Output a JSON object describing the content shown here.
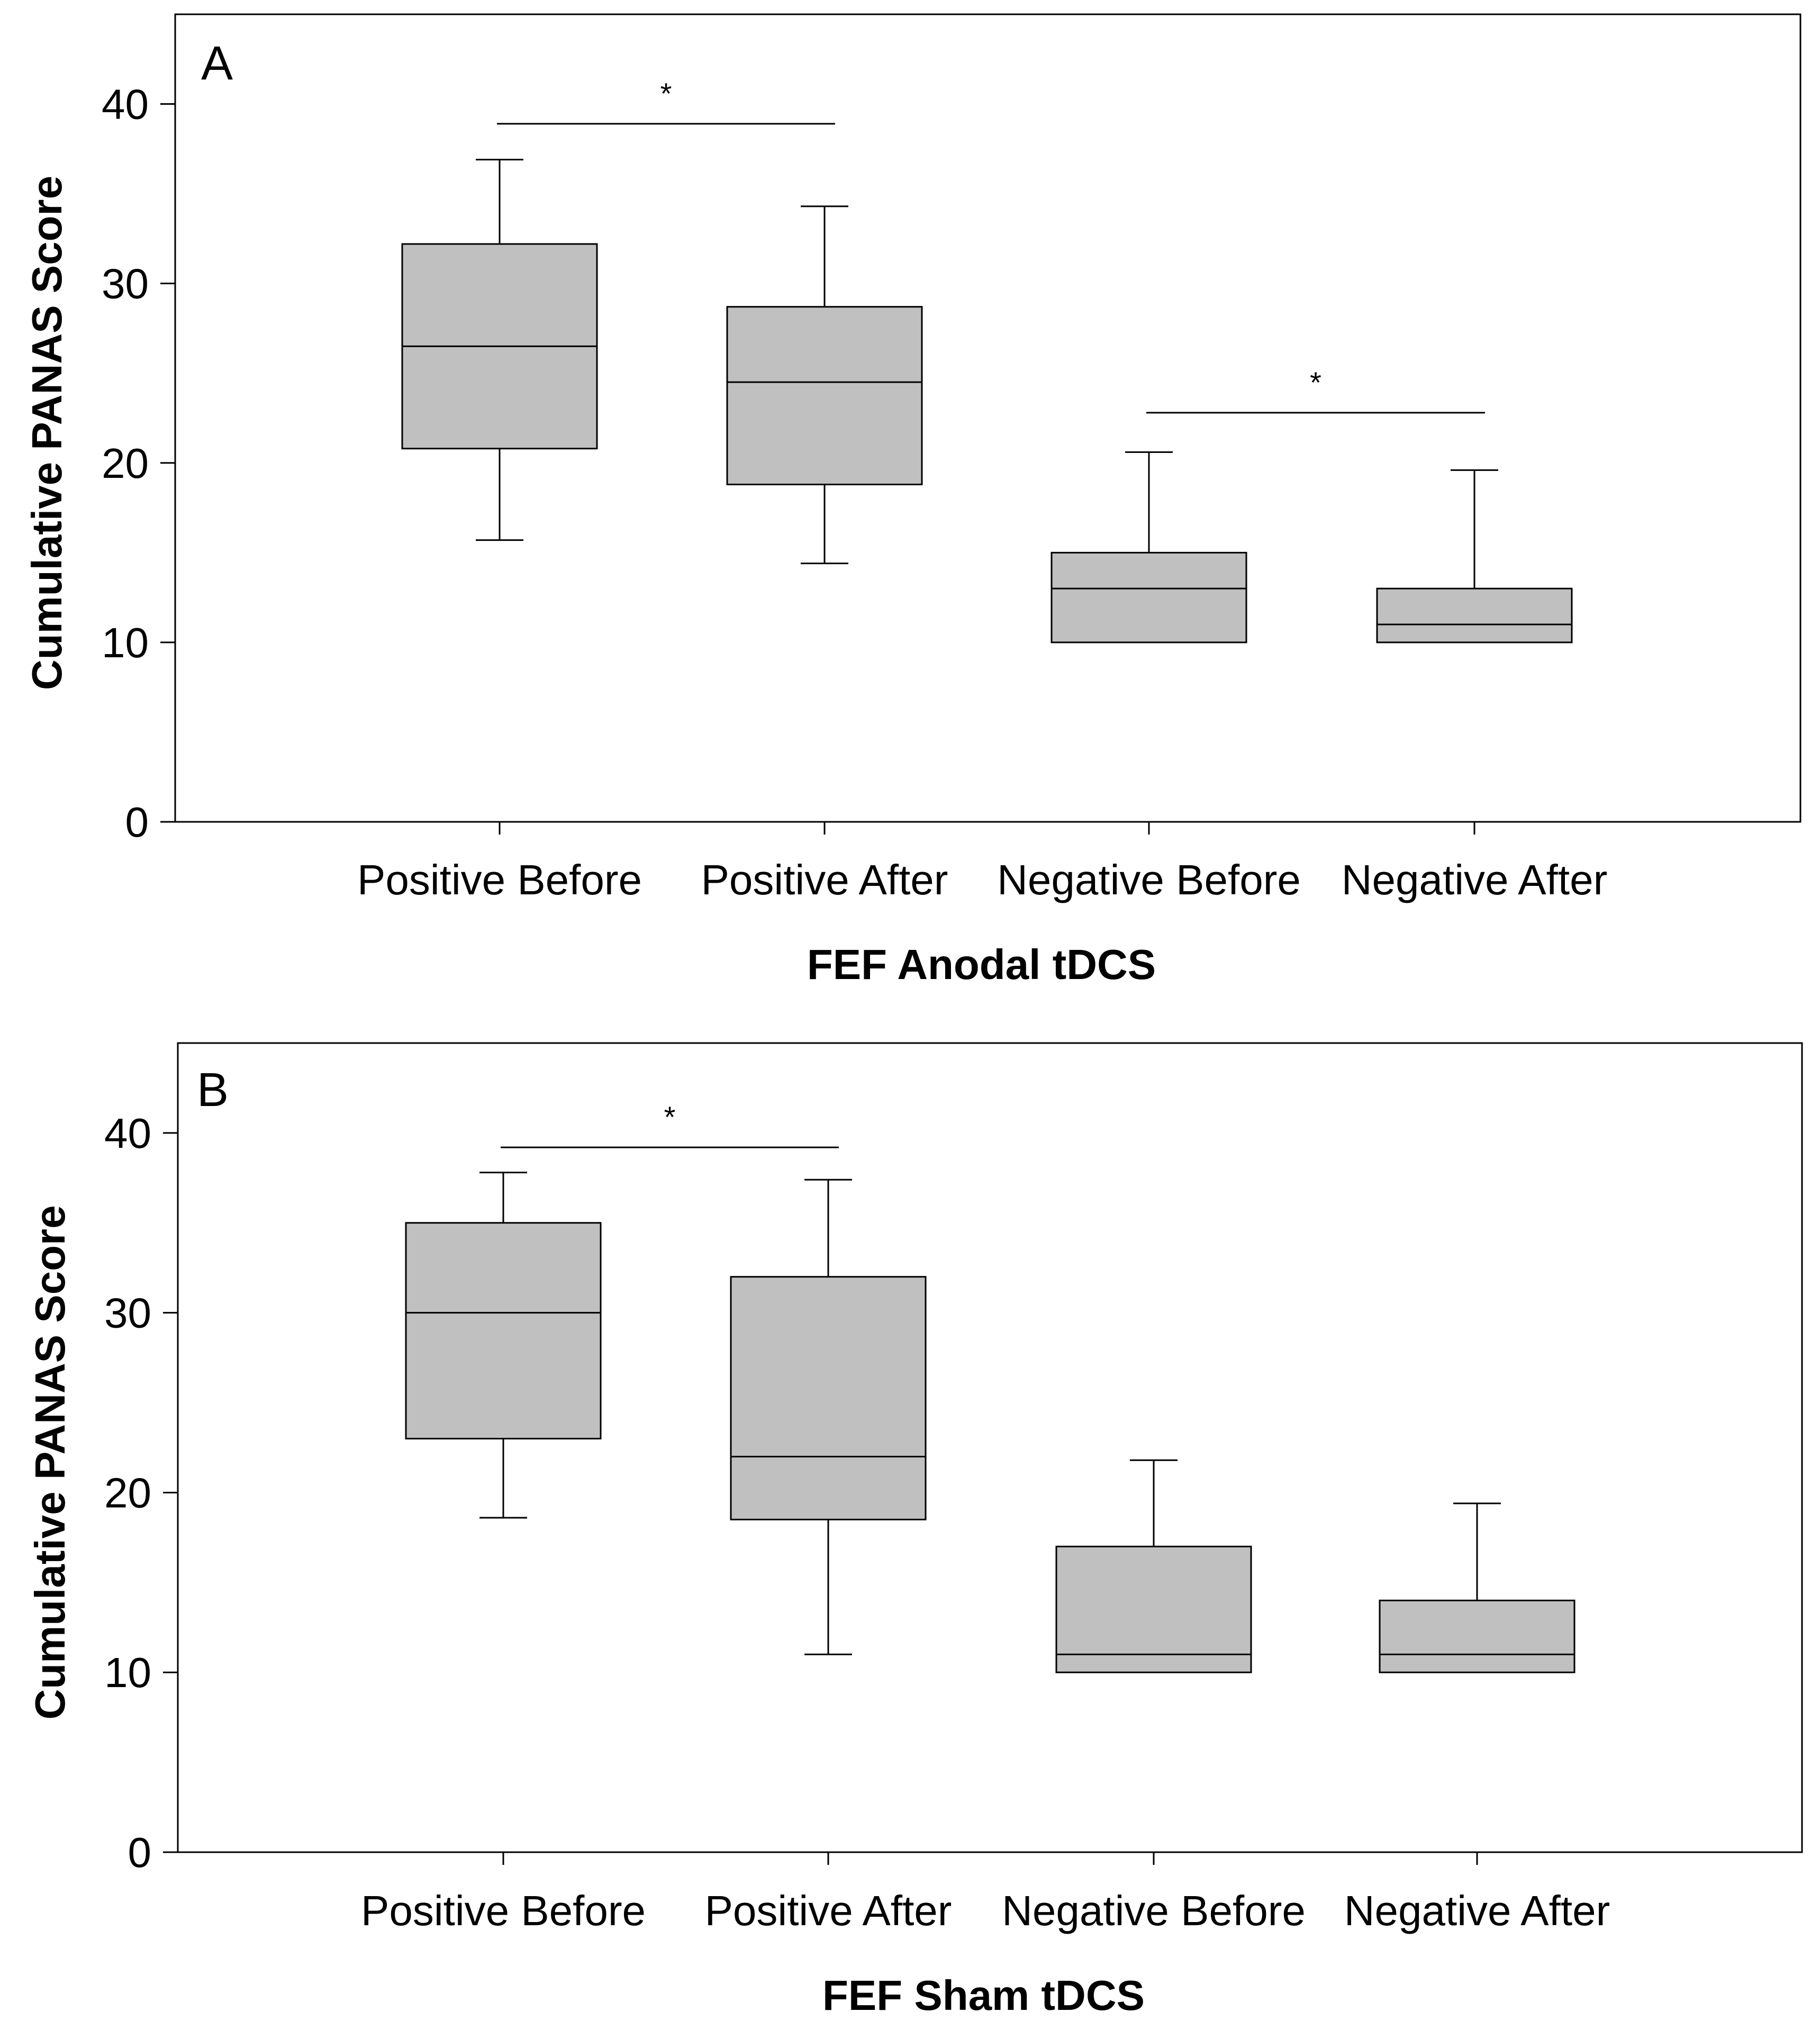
{
  "chart_data": [
    {
      "type": "box",
      "panel_label": "A",
      "xlabel": "FEF Anodal tDCS",
      "ylabel": "Cumulative PANAS Score",
      "ylim": [
        0,
        45
      ],
      "yticks": [
        0,
        10,
        20,
        30,
        40
      ],
      "grid": false,
      "fill_color": "#c0c0c0",
      "categories": [
        "Positive Before",
        "Positive After",
        "Negative Before",
        "Negative After"
      ],
      "boxes": [
        {
          "category": "Positive Before",
          "whisker_low": 15.7,
          "q1": 20.8,
          "median": 26.5,
          "q3": 32.2,
          "whisker_high": 36.9
        },
        {
          "category": "Positive After",
          "whisker_low": 14.4,
          "q1": 18.8,
          "median": 24.5,
          "q3": 28.7,
          "whisker_high": 34.3
        },
        {
          "category": "Negative Before",
          "whisker_low": 10,
          "q1": 10,
          "median": 13,
          "q3": 15,
          "whisker_high": 20.6
        },
        {
          "category": "Negative After",
          "whisker_low": 10,
          "q1": 10,
          "median": 11,
          "q3": 13,
          "whisker_high": 19.6
        }
      ],
      "significance": [
        {
          "from": "Positive Before",
          "to": "Positive After",
          "y": 38.9,
          "label": "*"
        },
        {
          "from": "Negative Before",
          "to": "Negative After",
          "y": 22.8,
          "label": "*"
        }
      ]
    },
    {
      "type": "box",
      "panel_label": "B",
      "xlabel": "FEF Sham tDCS",
      "ylabel": "Cumulative PANAS Score",
      "ylim": [
        0,
        45
      ],
      "yticks": [
        0,
        10,
        20,
        30,
        40
      ],
      "grid": false,
      "fill_color": "#c0c0c0",
      "categories": [
        "Positive Before",
        "Positive After",
        "Negative Before",
        "Negative After"
      ],
      "boxes": [
        {
          "category": "Positive Before",
          "whisker_low": 18.6,
          "q1": 23,
          "median": 30,
          "q3": 35,
          "whisker_high": 37.8
        },
        {
          "category": "Positive After",
          "whisker_low": 11,
          "q1": 18.5,
          "median": 22,
          "q3": 32,
          "whisker_high": 37.4
        },
        {
          "category": "Negative Before",
          "whisker_low": 10,
          "q1": 10,
          "median": 11,
          "q3": 17,
          "whisker_high": 21.8
        },
        {
          "category": "Negative After",
          "whisker_low": 10,
          "q1": 10,
          "median": 11,
          "q3": 14,
          "whisker_high": 19.4
        }
      ],
      "significance": [
        {
          "from": "Positive Before",
          "to": "Positive After",
          "y": 39.2,
          "label": "*"
        }
      ]
    }
  ]
}
